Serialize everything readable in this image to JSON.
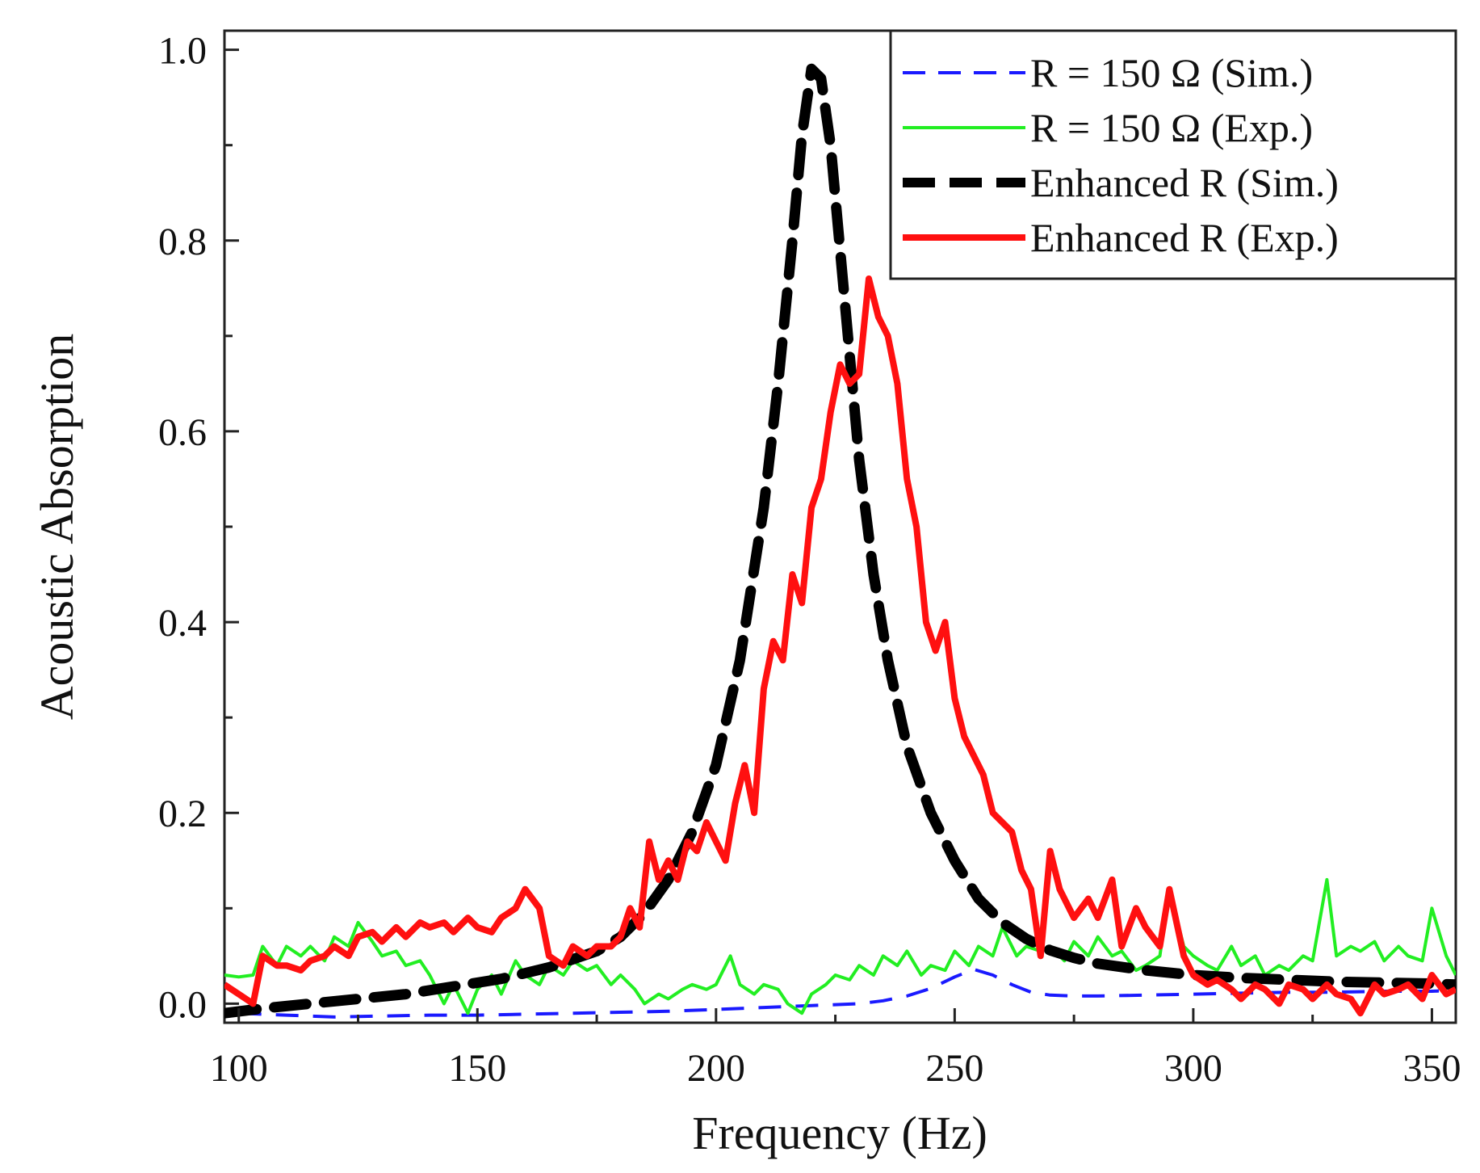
{
  "chart_data": {
    "type": "line",
    "title": "",
    "xlabel": "Frequency (Hz)",
    "ylabel": "Acoustic Absorption",
    "xlim": [
      97,
      355
    ],
    "ylim": [
      -0.02,
      1.02
    ],
    "xticks": [
      100,
      150,
      200,
      250,
      300,
      350
    ],
    "yticks": [
      0.0,
      0.2,
      0.4,
      0.6,
      0.8,
      1.0
    ],
    "xtick_labels": [
      "100",
      "150",
      "200",
      "250",
      "300",
      "350"
    ],
    "ytick_labels": [
      "0.0",
      "0.2",
      "0.4",
      "0.6",
      "0.8",
      "1.0"
    ],
    "grid": false,
    "legend_position": "top-right",
    "series": [
      {
        "name": "R = 150 Ω (Sim.)",
        "color": "#1a1aff",
        "style": "dashed",
        "x": [
          100,
          110,
          120,
          130,
          140,
          150,
          160,
          170,
          180,
          190,
          200,
          210,
          215,
          220,
          225,
          230,
          235,
          240,
          245,
          250,
          254,
          258,
          262,
          266,
          270,
          275,
          280,
          290,
          300,
          310,
          320,
          330,
          340,
          350,
          355
        ],
        "y": [
          -0.01,
          -0.012,
          -0.014,
          -0.013,
          -0.012,
          -0.012,
          -0.011,
          -0.01,
          -0.009,
          -0.008,
          -0.006,
          -0.004,
          -0.003,
          -0.002,
          -0.001,
          0.0,
          0.003,
          0.008,
          0.016,
          0.028,
          0.036,
          0.03,
          0.02,
          0.012,
          0.009,
          0.008,
          0.008,
          0.009,
          0.01,
          0.011,
          0.012,
          0.012,
          0.013,
          0.013,
          0.014
        ]
      },
      {
        "name": "R = 150 Ω (Exp.)",
        "color": "#22ee22",
        "style": "solid",
        "x": [
          97,
          100,
          103,
          105,
          108,
          110,
          113,
          115,
          118,
          120,
          123,
          125,
          128,
          130,
          133,
          135,
          138,
          140,
          143,
          145,
          148,
          150,
          153,
          155,
          158,
          160,
          163,
          165,
          168,
          170,
          173,
          175,
          178,
          180,
          183,
          185,
          188,
          190,
          193,
          195,
          198,
          200,
          203,
          205,
          208,
          210,
          213,
          215,
          218,
          220,
          223,
          225,
          228,
          230,
          233,
          235,
          238,
          240,
          243,
          245,
          248,
          250,
          253,
          255,
          258,
          260,
          263,
          265,
          268,
          270,
          273,
          275,
          278,
          280,
          283,
          285,
          288,
          290,
          293,
          295,
          298,
          300,
          303,
          305,
          308,
          310,
          313,
          315,
          318,
          320,
          323,
          325,
          328,
          330,
          333,
          335,
          338,
          340,
          343,
          345,
          348,
          350,
          353,
          355
        ],
        "y": [
          0.03,
          0.028,
          0.03,
          0.06,
          0.04,
          0.06,
          0.05,
          0.06,
          0.045,
          0.07,
          0.06,
          0.085,
          0.065,
          0.05,
          0.055,
          0.04,
          0.045,
          0.03,
          0.0,
          0.02,
          -0.01,
          0.015,
          0.03,
          0.01,
          0.045,
          0.03,
          0.02,
          0.04,
          0.03,
          0.045,
          0.035,
          0.04,
          0.02,
          0.03,
          0.015,
          0.0,
          0.01,
          0.005,
          0.015,
          0.02,
          0.015,
          0.02,
          0.05,
          0.02,
          0.01,
          0.02,
          0.015,
          0.0,
          -0.01,
          0.01,
          0.02,
          0.03,
          0.025,
          0.04,
          0.03,
          0.05,
          0.04,
          0.055,
          0.03,
          0.04,
          0.035,
          0.055,
          0.04,
          0.06,
          0.05,
          0.08,
          0.05,
          0.06,
          0.055,
          0.06,
          0.045,
          0.065,
          0.05,
          0.07,
          0.05,
          0.055,
          0.035,
          0.04,
          0.05,
          0.12,
          0.06,
          0.05,
          0.04,
          0.035,
          0.06,
          0.04,
          0.05,
          0.03,
          0.04,
          0.035,
          0.05,
          0.045,
          0.13,
          0.05,
          0.06,
          0.055,
          0.065,
          0.045,
          0.06,
          0.05,
          0.045,
          0.1,
          0.05,
          0.03
        ]
      },
      {
        "name": "Enhanced R (Sim.)",
        "color": "#000000",
        "style": "dashed",
        "x": [
          97,
          105,
          115,
          125,
          135,
          145,
          155,
          165,
          175,
          180,
          185,
          190,
          195,
          200,
          205,
          210,
          213,
          216,
          218,
          220,
          222,
          224,
          226,
          228,
          230,
          233,
          236,
          240,
          245,
          250,
          255,
          260,
          265,
          270,
          275,
          280,
          290,
          300,
          310,
          320,
          330,
          340,
          350,
          355
        ],
        "y": [
          -0.01,
          -0.005,
          0.0,
          0.005,
          0.01,
          0.018,
          0.026,
          0.038,
          0.055,
          0.07,
          0.095,
          0.13,
          0.18,
          0.25,
          0.36,
          0.52,
          0.65,
          0.8,
          0.91,
          0.98,
          0.97,
          0.9,
          0.79,
          0.68,
          0.57,
          0.45,
          0.36,
          0.27,
          0.2,
          0.15,
          0.11,
          0.085,
          0.068,
          0.056,
          0.048,
          0.042,
          0.035,
          0.03,
          0.027,
          0.025,
          0.023,
          0.022,
          0.021,
          0.02
        ]
      },
      {
        "name": "Enhanced R (Exp.)",
        "color": "#ff1010",
        "style": "solid",
        "x": [
          97,
          100,
          103,
          105,
          108,
          110,
          113,
          115,
          118,
          120,
          123,
          125,
          128,
          130,
          133,
          135,
          138,
          140,
          143,
          145,
          148,
          150,
          153,
          155,
          158,
          160,
          163,
          165,
          168,
          170,
          173,
          175,
          178,
          180,
          182,
          184,
          186,
          188,
          190,
          192,
          194,
          196,
          198,
          200,
          202,
          204,
          206,
          208,
          210,
          212,
          214,
          216,
          218,
          220,
          222,
          224,
          226,
          228,
          230,
          232,
          234,
          236,
          238,
          240,
          242,
          244,
          246,
          248,
          250,
          252,
          254,
          256,
          258,
          260,
          262,
          264,
          266,
          268,
          270,
          272,
          275,
          278,
          280,
          283,
          285,
          288,
          290,
          293,
          295,
          298,
          300,
          303,
          305,
          308,
          310,
          313,
          315,
          318,
          320,
          323,
          325,
          328,
          330,
          333,
          335,
          338,
          340,
          343,
          345,
          348,
          350,
          353,
          355
        ],
        "y": [
          0.02,
          0.01,
          0.0,
          0.05,
          0.04,
          0.04,
          0.035,
          0.045,
          0.05,
          0.06,
          0.05,
          0.07,
          0.075,
          0.065,
          0.08,
          0.07,
          0.085,
          0.08,
          0.085,
          0.075,
          0.09,
          0.08,
          0.075,
          0.09,
          0.1,
          0.12,
          0.1,
          0.05,
          0.04,
          0.06,
          0.05,
          0.06,
          0.06,
          0.07,
          0.1,
          0.08,
          0.17,
          0.13,
          0.15,
          0.13,
          0.17,
          0.16,
          0.19,
          0.17,
          0.15,
          0.21,
          0.25,
          0.2,
          0.33,
          0.38,
          0.36,
          0.45,
          0.42,
          0.52,
          0.55,
          0.62,
          0.67,
          0.65,
          0.66,
          0.76,
          0.72,
          0.7,
          0.65,
          0.55,
          0.5,
          0.4,
          0.37,
          0.4,
          0.32,
          0.28,
          0.26,
          0.24,
          0.2,
          0.19,
          0.18,
          0.14,
          0.12,
          0.05,
          0.16,
          0.12,
          0.09,
          0.11,
          0.09,
          0.13,
          0.06,
          0.1,
          0.08,
          0.06,
          0.12,
          0.05,
          0.03,
          0.02,
          0.025,
          0.015,
          0.005,
          0.02,
          0.015,
          0.0,
          0.02,
          0.015,
          0.005,
          0.02,
          0.01,
          0.005,
          -0.01,
          0.02,
          0.01,
          0.015,
          0.02,
          0.005,
          0.03,
          0.01,
          0.015
        ]
      }
    ]
  },
  "legend": [
    {
      "label": "R = 150 Ω (Sim.)",
      "color": "#1a1aff",
      "style": "dashed",
      "width": 4
    },
    {
      "label": "R = 150 Ω (Exp.)",
      "color": "#22ee22",
      "style": "solid",
      "width": 4
    },
    {
      "label": "Enhanced R (Sim.)",
      "color": "#000000",
      "style": "dashed",
      "width": 12
    },
    {
      "label": "Enhanced R (Exp.)",
      "color": "#ff1010",
      "style": "solid",
      "width": 8
    }
  ]
}
